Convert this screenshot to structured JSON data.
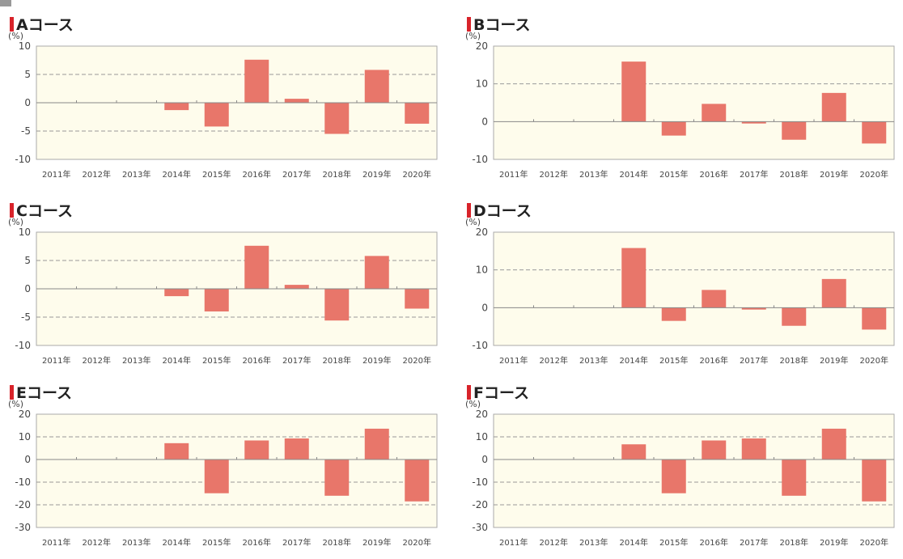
{
  "unit": "(%)",
  "colors": {
    "bar": "#e8766a",
    "plot_bg": "#fefcec",
    "zero_line": "#888888",
    "grid": "#999999",
    "border": "#aaaaaa"
  },
  "chart_data": [
    {
      "type": "bar",
      "title": "Aコース",
      "xlabel": "",
      "ylabel": "(%)",
      "categories": [
        "2011年",
        "2012年",
        "2013年",
        "2014年",
        "2015年",
        "2016年",
        "2017年",
        "2018年",
        "2019年",
        "2020年"
      ],
      "values": [
        0,
        0,
        0,
        -1.3,
        -4.2,
        7.6,
        0.7,
        -5.5,
        5.8,
        -3.7
      ],
      "ylim": [
        -10,
        10
      ],
      "yticks": [
        10,
        5,
        0,
        -5,
        -10
      ],
      "gridlines": [
        5,
        -5
      ]
    },
    {
      "type": "bar",
      "title": "Bコース",
      "xlabel": "",
      "ylabel": "(%)",
      "categories": [
        "2011年",
        "2012年",
        "2013年",
        "2014年",
        "2015年",
        "2016年",
        "2017年",
        "2018年",
        "2019年",
        "2020年"
      ],
      "values": [
        0,
        0,
        0,
        15.9,
        -3.7,
        4.7,
        -0.5,
        -4.8,
        7.6,
        -5.8
      ],
      "ylim": [
        -10,
        20
      ],
      "yticks": [
        20,
        10,
        0,
        -10
      ],
      "gridlines": [
        10
      ]
    },
    {
      "type": "bar",
      "title": "Cコース",
      "xlabel": "",
      "ylabel": "(%)",
      "categories": [
        "2011年",
        "2012年",
        "2013年",
        "2014年",
        "2015年",
        "2016年",
        "2017年",
        "2018年",
        "2019年",
        "2020年"
      ],
      "values": [
        0,
        0,
        0,
        -1.3,
        -4.0,
        7.6,
        0.7,
        -5.6,
        5.8,
        -3.5
      ],
      "ylim": [
        -10,
        10
      ],
      "yticks": [
        10,
        5,
        0,
        -5,
        -10
      ],
      "gridlines": [
        5,
        -5
      ]
    },
    {
      "type": "bar",
      "title": "Dコース",
      "xlabel": "",
      "ylabel": "(%)",
      "categories": [
        "2011年",
        "2012年",
        "2013年",
        "2014年",
        "2015年",
        "2016年",
        "2017年",
        "2018年",
        "2019年",
        "2020年"
      ],
      "values": [
        0,
        0,
        0,
        15.8,
        -3.5,
        4.7,
        -0.5,
        -4.8,
        7.6,
        -5.8
      ],
      "ylim": [
        -10,
        20
      ],
      "yticks": [
        20,
        10,
        0,
        -10
      ],
      "gridlines": [
        10
      ]
    },
    {
      "type": "bar",
      "title": "Eコース",
      "xlabel": "",
      "ylabel": "(%)",
      "categories": [
        "2011年",
        "2012年",
        "2013年",
        "2014年",
        "2015年",
        "2016年",
        "2017年",
        "2018年",
        "2019年",
        "2020年"
      ],
      "values": [
        0,
        0,
        0,
        7.2,
        -14.9,
        8.4,
        9.3,
        -16.0,
        13.6,
        -18.5
      ],
      "ylim": [
        -30,
        20
      ],
      "yticks": [
        20,
        10,
        0,
        -10,
        -20,
        -30
      ],
      "gridlines": [
        10,
        -10,
        -20
      ]
    },
    {
      "type": "bar",
      "title": "Fコース",
      "xlabel": "",
      "ylabel": "(%)",
      "categories": [
        "2011年",
        "2012年",
        "2013年",
        "2014年",
        "2015年",
        "2016年",
        "2017年",
        "2018年",
        "2019年",
        "2020年"
      ],
      "values": [
        0,
        0,
        0,
        6.7,
        -14.9,
        8.4,
        9.3,
        -16.0,
        13.6,
        -18.5
      ],
      "ylim": [
        -30,
        20
      ],
      "yticks": [
        20,
        10,
        0,
        -10,
        -20,
        -30
      ],
      "gridlines": [
        10,
        -10,
        -20
      ]
    }
  ]
}
